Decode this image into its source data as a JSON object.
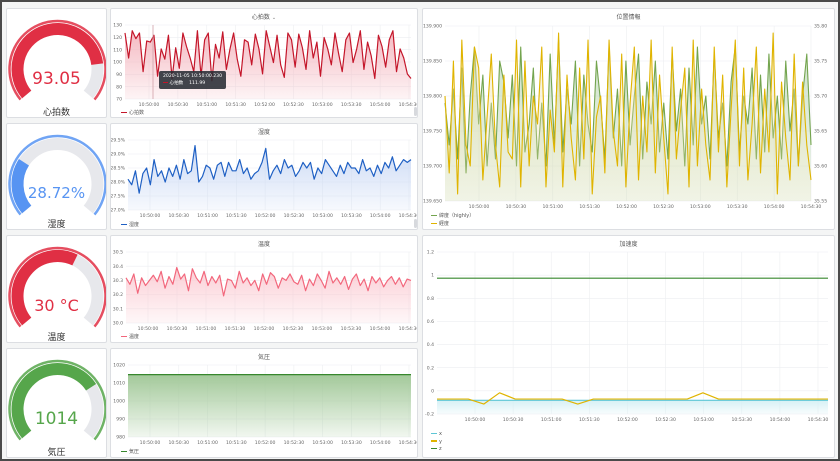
{
  "gauges": [
    {
      "id": "heart",
      "value_text": "93.05",
      "label": "心拍数",
      "color": "#e02f44",
      "fill": 0.82
    },
    {
      "id": "humidity",
      "value_text": "28.72%",
      "label": "湿度",
      "color": "#5794f2",
      "fill": 0.28
    },
    {
      "id": "temp",
      "value_text": "30 °C",
      "label": "温度",
      "color": "#e02f44",
      "fill": 0.6
    },
    {
      "id": "pressure",
      "value_text": "1014",
      "label": "気圧",
      "color": "#56a64b",
      "fill": 0.72
    }
  ],
  "panels": {
    "heart": {
      "title": "心拍数",
      "title_suffix": "⌄",
      "legend": "心拍数"
    },
    "humidity": {
      "title": "湿度",
      "legend": "湿度"
    },
    "temp": {
      "title": "温度",
      "legend": "温度"
    },
    "pressure": {
      "title": "気圧",
      "legend": "気圧"
    },
    "location": {
      "title": "位置情報",
      "legend": [
        "緯度（highly）",
        "経度"
      ]
    },
    "accel": {
      "title": "加速度",
      "legend": [
        "x",
        "y",
        "z"
      ]
    }
  },
  "tooltip": {
    "time": "2020-11-05 10:50:00.230",
    "series": "心拍数",
    "value": "111.99"
  },
  "x_ticks": [
    "10:50:00",
    "10:50:30",
    "10:51:00",
    "10:51:30",
    "10:52:00",
    "10:52:30",
    "10:53:00",
    "10:53:30",
    "10:54:00",
    "10:54:30"
  ],
  "x_ticks_wide": [
    "10:50:00",
    "10:50:30",
    "10:51:00",
    "10:51:30",
    "10:52:00",
    "10:52:30",
    "10:53:00",
    "10:53:30",
    "10:54:00",
    "10:54:30"
  ],
  "colors": {
    "red": "#c4162a",
    "redfill": "#f4b6bf",
    "blue": "#1f60c4",
    "bluefill": "#c6d6f4",
    "pink": "#f2677c",
    "pinkfill": "#fbc9d1",
    "green": "#37872d",
    "greenfill": "#a3c99a",
    "lgreen": "#73a44e",
    "yellow": "#e0b400",
    "cyan": "#5ec6d6",
    "cyanfill": "#d2eff4",
    "orange": "#d98a00"
  },
  "chart_data": [
    {
      "type": "line",
      "title": "心拍数",
      "ylim": [
        60,
        125
      ],
      "yticks": [
        "130",
        "120",
        "110",
        "100",
        "90",
        "80",
        "70"
      ],
      "series": [
        {
          "name": "心拍数",
          "values": [
            118,
            96,
            120,
            113,
            118,
            84,
            111,
            110,
            116,
            80,
            104,
            95,
            116,
            78,
            105,
            87,
            118,
            106,
            96,
            84,
            120,
            80,
            112,
            118,
            76,
            108,
            96,
            119,
            86,
            104,
            118,
            95,
            80,
            112,
            110,
            90,
            117,
            104,
            82,
            120,
            106,
            92,
            116,
            90,
            79,
            118,
            112,
            88,
            117,
            105,
            86,
            120,
            96,
            110,
            80,
            114,
            104,
            90,
            118,
            100,
            84,
            112,
            118,
            92,
            104,
            120,
            86,
            110,
            98,
            78,
            116,
            106,
            88,
            112,
            120,
            84,
            104,
            96,
            82,
            78
          ]
        }
      ]
    },
    {
      "type": "line",
      "title": "湿度",
      "ylim": [
        27.0,
        29.5
      ],
      "yticks": [
        "29.5%",
        "29.0%",
        "28.5%",
        "28.0%",
        "27.5%",
        "27.0%"
      ],
      "series": [
        {
          "name": "湿度",
          "values": [
            28.1,
            27.9,
            28.4,
            27.6,
            28.3,
            28.5,
            27.9,
            28.8,
            28.2,
            28.4,
            28.0,
            28.5,
            28.2,
            28.6,
            28.1,
            28.8,
            28.3,
            28.4,
            29.3,
            28.0,
            28.2,
            28.6,
            28.5,
            28.1,
            28.6,
            28.7,
            28.2,
            28.7,
            28.4,
            28.4,
            28.8,
            28.3,
            28.5,
            28.1,
            28.3,
            28.4,
            28.7,
            29.2,
            28.1,
            28.4,
            28.6,
            28.3,
            28.8,
            28.5,
            28.6,
            28.2,
            28.4,
            28.7,
            28.5,
            28.7,
            28.1,
            28.5,
            28.3,
            28.8,
            28.6,
            28.4,
            28.2,
            28.6,
            28.3,
            28.7,
            28.5,
            28.5,
            28.3,
            28.8,
            28.4,
            28.5,
            28.2,
            28.6,
            28.3,
            28.7,
            28.5,
            28.9,
            28.4,
            28.6,
            28.8,
            28.7,
            28.8
          ]
        }
      ]
    },
    {
      "type": "line",
      "title": "温度",
      "ylim": [
        29.95,
        30.5
      ],
      "yticks": [
        "30.5",
        "30.4",
        "30.3",
        "30.2",
        "30.1",
        "30.0"
      ],
      "series": [
        {
          "name": "温度",
          "values": [
            30.3,
            30.25,
            30.33,
            30.18,
            30.3,
            30.24,
            30.28,
            30.32,
            30.27,
            30.35,
            30.22,
            30.31,
            30.25,
            30.38,
            30.29,
            30.33,
            30.2,
            30.37,
            30.3,
            30.26,
            30.35,
            30.24,
            30.31,
            30.26,
            30.32,
            30.16,
            30.29,
            30.28,
            30.22,
            30.35,
            30.26,
            30.3,
            30.24,
            30.28,
            30.2,
            30.33,
            30.25,
            30.34,
            30.31,
            30.22,
            30.3,
            30.28,
            30.33,
            30.27,
            30.25,
            30.32,
            30.2,
            30.29,
            30.24,
            30.33,
            30.28,
            30.22,
            30.35,
            30.26,
            30.3,
            30.25,
            30.31,
            30.21,
            30.29,
            30.33,
            30.24,
            30.29,
            30.2,
            30.31,
            30.26,
            30.3,
            30.23,
            30.28,
            30.31,
            30.25,
            30.3,
            30.23,
            30.29,
            30.28
          ]
        }
      ]
    },
    {
      "type": "area",
      "title": "気圧",
      "ylim": [
        975,
        1020
      ],
      "yticks": [
        "1020",
        "1010",
        "1000",
        "990",
        "980"
      ],
      "series": [
        {
          "name": "気圧",
          "values": [
            1014,
            1014,
            1014,
            1014,
            1014,
            1014,
            1014,
            1014,
            1014,
            1014
          ]
        }
      ]
    },
    {
      "type": "line",
      "title": "位置情報",
      "ylim_left": [
        139.65,
        139.9
      ],
      "yticks_left": [
        "139.900",
        "139.850",
        "139.800",
        "139.750",
        "139.700",
        "139.650"
      ],
      "yticks_right": [
        "35.80",
        "35.75",
        "35.70",
        "35.65",
        "35.60",
        "35.55"
      ],
      "series": [
        {
          "name": "緯度（highly）",
          "axis": "left",
          "values": [
            139.79,
            139.73,
            139.81,
            139.71,
            139.84,
            139.69,
            139.8,
            139.87,
            139.76,
            139.83,
            139.7,
            139.79,
            139.71,
            139.85,
            139.82,
            139.74,
            139.83,
            139.7,
            139.87,
            139.72,
            139.76,
            139.84,
            139.71,
            139.79,
            139.7,
            139.86,
            139.73,
            139.88,
            139.72,
            139.81,
            139.76,
            139.85,
            139.7,
            139.83,
            139.76,
            139.72,
            139.85,
            139.79,
            139.71,
            139.87,
            139.74,
            139.81,
            139.7,
            139.85,
            139.73,
            139.8,
            139.86,
            139.71,
            139.82,
            139.76,
            139.85,
            139.72,
            139.79,
            139.71,
            139.86,
            139.75,
            139.81,
            139.7,
            139.84,
            139.73,
            139.87,
            139.76,
            139.8,
            139.71,
            139.86,
            139.74,
            139.79,
            139.7,
            139.82,
            139.87,
            139.72,
            139.8,
            139.76,
            139.84,
            139.71,
            139.83,
            139.72,
            139.86,
            139.74,
            139.8,
            139.71,
            139.85,
            139.75,
            139.81,
            139.7,
            139.8,
            139.86,
            139.73
          ]
        },
        {
          "name": "経度",
          "axis": "right",
          "values": [
            35.7,
            35.59,
            35.75,
            35.56,
            35.78,
            35.63,
            35.6,
            35.77,
            35.74,
            35.58,
            35.67,
            35.76,
            35.63,
            35.57,
            35.73,
            35.62,
            35.61,
            35.78,
            35.57,
            35.75,
            35.6,
            35.7,
            35.66,
            35.77,
            35.57,
            35.68,
            35.62,
            35.79,
            35.57,
            35.73,
            35.64,
            35.58,
            35.74,
            35.61,
            35.78,
            35.56,
            35.67,
            35.7,
            35.59,
            35.78,
            35.65,
            35.6,
            35.76,
            35.57,
            35.69,
            35.77,
            35.58,
            35.7,
            35.62,
            35.78,
            35.59,
            35.73,
            35.64,
            35.56,
            35.77,
            35.61,
            35.68,
            35.74,
            35.57,
            35.78,
            35.6,
            35.71,
            35.63,
            35.58,
            35.77,
            35.62,
            35.73,
            35.57,
            35.68,
            35.78,
            35.6,
            35.74,
            35.58,
            35.66,
            35.77,
            35.59,
            35.71,
            35.62,
            35.79,
            35.56,
            35.72,
            35.64,
            35.58,
            35.76,
            35.6,
            35.72,
            35.63,
            35.58
          ]
        }
      ]
    },
    {
      "type": "line",
      "title": "加速度",
      "ylim": [
        -0.1,
        1.2
      ],
      "yticks": [
        "1.2",
        "1",
        "0.8",
        "0.6",
        "0.4",
        "0.2",
        "0",
        "-0.2"
      ],
      "series": [
        {
          "name": "x",
          "values": [
            0.01,
            0.01,
            0.01,
            0.01,
            0.01,
            0.01,
            0.01,
            0.01,
            0.01,
            0.01
          ]
        },
        {
          "name": "y",
          "values": [
            0.02,
            0.02,
            0.02,
            -0.02,
            0.07,
            0.02,
            0.02,
            0.02,
            0.02,
            -0.02,
            0.02,
            0.02,
            0.02,
            0.02,
            0.02,
            0.02,
            0.02,
            0.07,
            0.02,
            0.02,
            0.02,
            0.02,
            0.02,
            0.02,
            0.02,
            0.02
          ]
        },
        {
          "name": "z",
          "values": [
            0.99,
            0.99,
            0.99,
            0.99,
            0.99,
            0.99,
            0.99,
            0.99,
            0.99,
            0.99
          ]
        }
      ]
    }
  ]
}
